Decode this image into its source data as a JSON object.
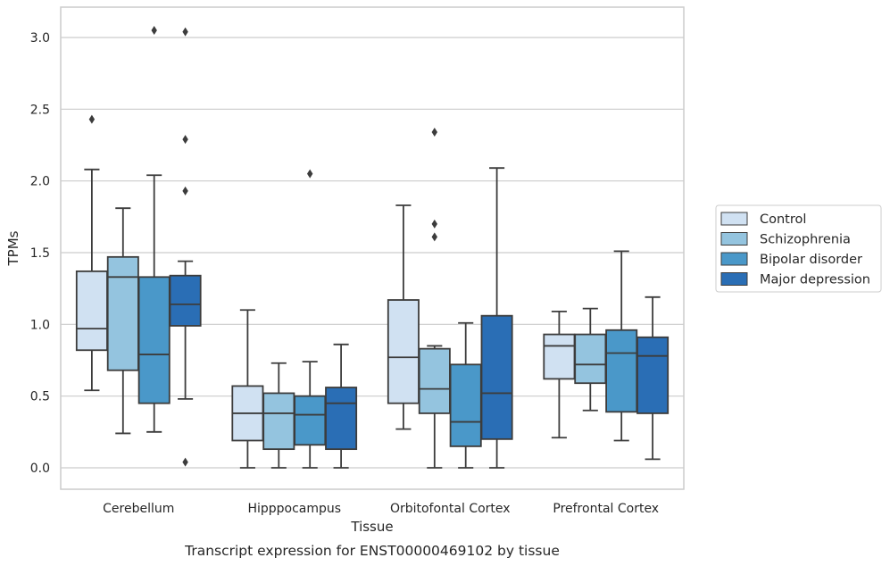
{
  "chart_data": {
    "type": "box",
    "xlabel": "Tissue",
    "ylabel": "TPMs",
    "caption": "Transcript expression for ENST00000469102 by tissue",
    "ylim": [
      -0.15,
      3.2
    ],
    "yticks": [
      "0.0",
      "0.5",
      "1.0",
      "1.5",
      "2.0",
      "2.5",
      "3.0"
    ],
    "grid": "horizontal",
    "legend_position": "right-outside",
    "categories": [
      "Cerebellum",
      "Hipppocampus",
      "Orbitofontal Cortex",
      "Prefrontal Cortex"
    ],
    "series": [
      {
        "name": "Control",
        "color": "#d0e1f2",
        "boxes": [
          {
            "whislo": 0.54,
            "q1": 0.82,
            "med": 0.97,
            "q3": 1.37,
            "whishi": 2.08,
            "fliers": [
              2.43
            ]
          },
          {
            "whislo": 0.0,
            "q1": 0.19,
            "med": 0.38,
            "q3": 0.57,
            "whishi": 1.1,
            "fliers": []
          },
          {
            "whislo": 0.27,
            "q1": 0.45,
            "med": 0.77,
            "q3": 1.17,
            "whishi": 1.83,
            "fliers": []
          },
          {
            "whislo": 0.21,
            "q1": 0.62,
            "med": 0.85,
            "q3": 0.93,
            "whishi": 1.09,
            "fliers": []
          }
        ]
      },
      {
        "name": "Schizophrenia",
        "color": "#94c4df",
        "boxes": [
          {
            "whislo": 0.24,
            "q1": 0.68,
            "med": 1.33,
            "q3": 1.47,
            "whishi": 1.81,
            "fliers": []
          },
          {
            "whislo": 0.0,
            "q1": 0.13,
            "med": 0.38,
            "q3": 0.52,
            "whishi": 0.73,
            "fliers": []
          },
          {
            "whislo": 0.0,
            "q1": 0.38,
            "med": 0.55,
            "q3": 0.83,
            "whishi": 0.85,
            "fliers": [
              1.61,
              1.7,
              2.34
            ]
          },
          {
            "whislo": 0.4,
            "q1": 0.59,
            "med": 0.72,
            "q3": 0.93,
            "whishi": 1.11,
            "fliers": []
          }
        ]
      },
      {
        "name": "Bipolar disorder",
        "color": "#4a98c9",
        "boxes": [
          {
            "whislo": 0.25,
            "q1": 0.45,
            "med": 0.79,
            "q3": 1.33,
            "whishi": 2.04,
            "fliers": [
              3.05
            ]
          },
          {
            "whislo": 0.0,
            "q1": 0.16,
            "med": 0.37,
            "q3": 0.5,
            "whishi": 0.74,
            "fliers": [
              2.05
            ]
          },
          {
            "whislo": 0.0,
            "q1": 0.15,
            "med": 0.32,
            "q3": 0.72,
            "whishi": 1.01,
            "fliers": []
          },
          {
            "whislo": 0.19,
            "q1": 0.39,
            "med": 0.8,
            "q3": 0.96,
            "whishi": 1.51,
            "fliers": []
          }
        ]
      },
      {
        "name": "Major depression",
        "color": "#2a6eb5",
        "boxes": [
          {
            "whislo": 0.48,
            "q1": 0.99,
            "med": 1.14,
            "q3": 1.34,
            "whishi": 1.44,
            "fliers": [
              0.04,
              1.93,
              2.29,
              3.04
            ]
          },
          {
            "whislo": 0.0,
            "q1": 0.13,
            "med": 0.45,
            "q3": 0.56,
            "whishi": 0.86,
            "fliers": []
          },
          {
            "whislo": 0.0,
            "q1": 0.2,
            "med": 0.52,
            "q3": 1.06,
            "whishi": 2.09,
            "fliers": []
          },
          {
            "whislo": 0.06,
            "q1": 0.38,
            "med": 0.78,
            "q3": 0.91,
            "whishi": 1.19,
            "fliers": []
          }
        ]
      }
    ]
  }
}
